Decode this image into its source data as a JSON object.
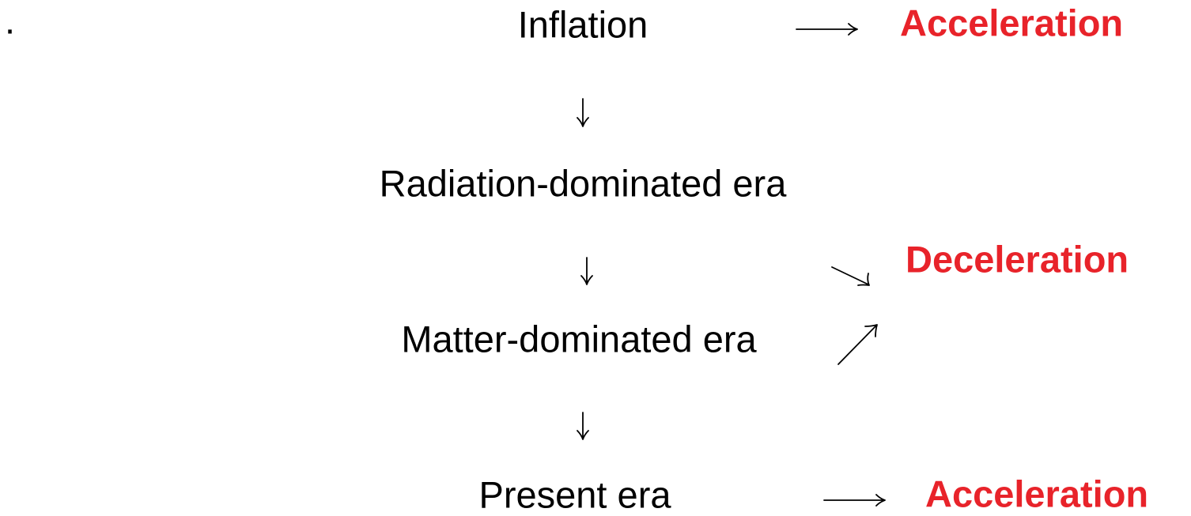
{
  "marker": ".",
  "nodes": [
    {
      "label": "Inflation"
    },
    {
      "label": "Radiation-dominated era"
    },
    {
      "label": "Matter-dominated era"
    },
    {
      "label": "Present era"
    }
  ],
  "outcomes": [
    {
      "label": "Acceleration"
    },
    {
      "label": "Deceleration"
    },
    {
      "label": "Acceleration"
    }
  ]
}
